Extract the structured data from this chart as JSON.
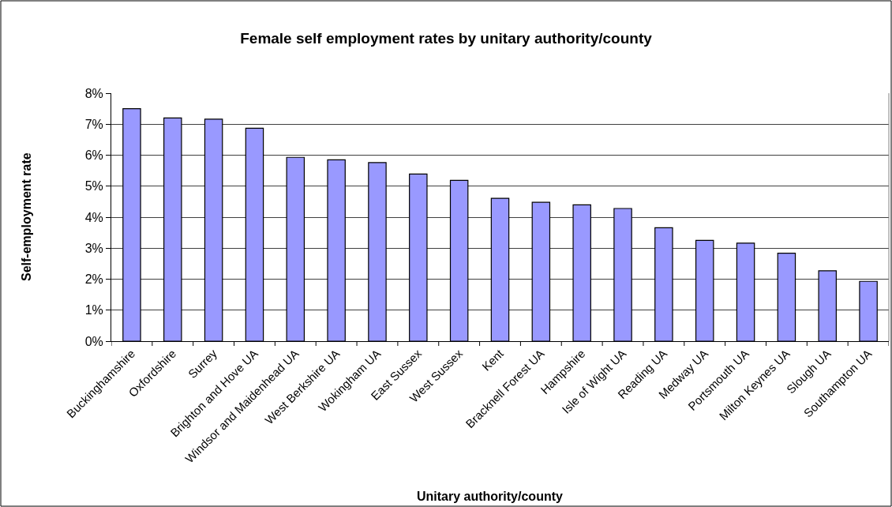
{
  "chart_data": {
    "type": "bar",
    "title": "Female self employment rates by unitary authority/county",
    "xlabel": "Unitary authority/county",
    "ylabel": "Self-employment rate",
    "categories": [
      "Buckinghamshire",
      "Oxfordshire",
      "Surrey",
      "Brighton and Hove UA",
      "Windsor and Maidenhead UA",
      "West Berkshire UA",
      "Wokingham UA",
      "East Sussex",
      "West Sussex",
      "Kent",
      "Bracknell Forest UA",
      "Hampshire",
      "Isle of Wight UA",
      "Reading UA",
      "Medway UA",
      "Portsmouth UA",
      "Milton Keynes UA",
      "Slough UA",
      "Southampton UA"
    ],
    "values": [
      7.5,
      7.2,
      7.16,
      6.87,
      5.93,
      5.85,
      5.76,
      5.39,
      5.19,
      4.61,
      4.48,
      4.4,
      4.28,
      3.66,
      3.25,
      3.16,
      2.84,
      2.27,
      1.93
    ],
    "color": "#9999ff",
    "ylim": [
      0,
      8
    ],
    "yticks": [
      {
        "value": 0,
        "label": "0%"
      },
      {
        "value": 1,
        "label": "1%"
      },
      {
        "value": 2,
        "label": "2%"
      },
      {
        "value": 3,
        "label": "3%"
      },
      {
        "value": 4,
        "label": "4%"
      },
      {
        "value": 5,
        "label": "5%"
      },
      {
        "value": 6,
        "label": "6%"
      },
      {
        "value": 7,
        "label": "7%"
      },
      {
        "value": 8,
        "label": "8%"
      }
    ],
    "grid": "y"
  }
}
